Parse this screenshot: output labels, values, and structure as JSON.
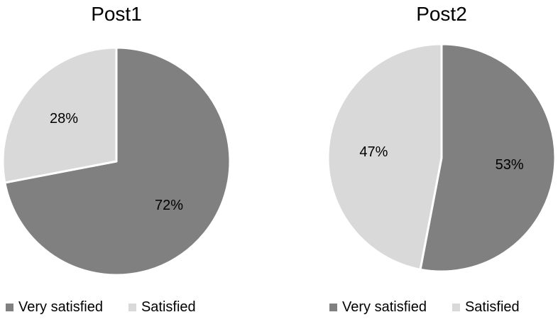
{
  "chart_data": [
    {
      "type": "pie",
      "title": "Post1",
      "categories": [
        "Very satisfied",
        "Satisfied"
      ],
      "values": [
        72,
        28
      ],
      "labels": [
        "72%",
        "28%"
      ],
      "colors": [
        "#808080",
        "#d9d9d9"
      ],
      "legend_position": "bottom"
    },
    {
      "type": "pie",
      "title": "Post2",
      "categories": [
        "Very satisfied",
        "Satisfied"
      ],
      "values": [
        53,
        47
      ],
      "labels": [
        "53%",
        "47%"
      ],
      "colors": [
        "#808080",
        "#d9d9d9"
      ],
      "legend_position": "bottom"
    }
  ]
}
